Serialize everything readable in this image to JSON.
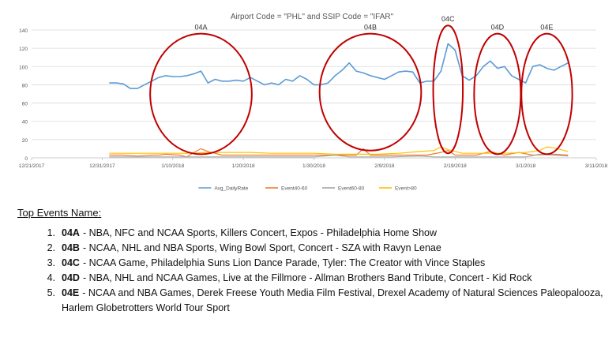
{
  "chart_data": {
    "type": "line",
    "title": "Airport Code = \"PHL\" and SSIP Code = \"IFAR\"",
    "ylim": [
      0,
      140
    ],
    "y_ticks": [
      "0",
      "20",
      "40",
      "60",
      "80",
      "100",
      "120",
      "140"
    ],
    "x_ticks": [
      "12/21/2017",
      "12/31/2017",
      "1/10/2018",
      "1/20/2018",
      "1/30/2018",
      "2/9/2018",
      "2/19/2018",
      "3/1/2018",
      "3/11/2018"
    ],
    "grid": true,
    "legend_position": "bottom",
    "series": [
      {
        "name": "Avg_DailyRate",
        "color": "#5b9bd5",
        "points": [
          [
            "2018-01-01",
            82
          ],
          [
            "2018-01-02",
            82
          ],
          [
            "2018-01-03",
            81
          ],
          [
            "2018-01-04",
            76
          ],
          [
            "2018-01-05",
            76
          ],
          [
            "2018-01-06",
            80
          ],
          [
            "2018-01-07",
            84
          ],
          [
            "2018-01-08",
            88
          ],
          [
            "2018-01-09",
            90
          ],
          [
            "2018-01-10",
            89
          ],
          [
            "2018-01-11",
            89
          ],
          [
            "2018-01-12",
            90
          ],
          [
            "2018-01-13",
            92
          ],
          [
            "2018-01-14",
            95
          ],
          [
            "2018-01-15",
            82
          ],
          [
            "2018-01-16",
            86
          ],
          [
            "2018-01-17",
            84
          ],
          [
            "2018-01-18",
            84
          ],
          [
            "2018-01-19",
            85
          ],
          [
            "2018-01-20",
            84
          ],
          [
            "2018-01-21",
            88
          ],
          [
            "2018-01-22",
            84
          ],
          [
            "2018-01-23",
            80
          ],
          [
            "2018-01-24",
            82
          ],
          [
            "2018-01-25",
            80
          ],
          [
            "2018-01-26",
            86
          ],
          [
            "2018-01-27",
            84
          ],
          [
            "2018-01-28",
            90
          ],
          [
            "2018-01-29",
            86
          ],
          [
            "2018-01-30",
            80
          ],
          [
            "2018-01-31",
            80
          ],
          [
            "2018-02-01",
            82
          ],
          [
            "2018-02-02",
            90
          ],
          [
            "2018-02-03",
            96
          ],
          [
            "2018-02-04",
            104
          ],
          [
            "2018-02-05",
            95
          ],
          [
            "2018-02-06",
            93
          ],
          [
            "2018-02-07",
            90
          ],
          [
            "2018-02-08",
            88
          ],
          [
            "2018-02-09",
            86
          ],
          [
            "2018-02-10",
            90
          ],
          [
            "2018-02-11",
            94
          ],
          [
            "2018-02-12",
            95
          ],
          [
            "2018-02-13",
            94
          ],
          [
            "2018-02-14",
            82
          ],
          [
            "2018-02-15",
            84
          ],
          [
            "2018-02-16",
            84
          ],
          [
            "2018-02-17",
            95
          ],
          [
            "2018-02-18",
            125
          ],
          [
            "2018-02-19",
            118
          ],
          [
            "2018-02-20",
            90
          ],
          [
            "2018-02-21",
            85
          ],
          [
            "2018-02-22",
            90
          ],
          [
            "2018-02-23",
            100
          ],
          [
            "2018-02-24",
            106
          ],
          [
            "2018-02-25",
            98
          ],
          [
            "2018-02-26",
            100
          ],
          [
            "2018-02-27",
            90
          ],
          [
            "2018-02-28",
            86
          ],
          [
            "2018-03-01",
            82
          ],
          [
            "2018-03-02",
            100
          ],
          [
            "2018-03-03",
            102
          ],
          [
            "2018-03-04",
            98
          ],
          [
            "2018-03-05",
            96
          ],
          [
            "2018-03-06",
            100
          ],
          [
            "2018-03-07",
            104
          ]
        ]
      },
      {
        "name": "Event40-60",
        "color": "#ed7d31",
        "points": [
          [
            "2018-01-01",
            3
          ],
          [
            "2018-01-03",
            3
          ],
          [
            "2018-01-05",
            2
          ],
          [
            "2018-01-07",
            3
          ],
          [
            "2018-01-08",
            3
          ],
          [
            "2018-01-09",
            4
          ],
          [
            "2018-01-11",
            3
          ],
          [
            "2018-01-12",
            1
          ],
          [
            "2018-01-13",
            6
          ],
          [
            "2018-01-14",
            10
          ],
          [
            "2018-01-15",
            7
          ],
          [
            "2018-01-17",
            3
          ],
          [
            "2018-01-20",
            3
          ],
          [
            "2018-01-23",
            3
          ],
          [
            "2018-01-26",
            3
          ],
          [
            "2018-01-28",
            3
          ],
          [
            "2018-01-31",
            3
          ],
          [
            "2018-02-03",
            3
          ],
          [
            "2018-02-05",
            3
          ],
          [
            "2018-02-06",
            10
          ],
          [
            "2018-02-07",
            3
          ],
          [
            "2018-02-10",
            3
          ],
          [
            "2018-02-13",
            3
          ],
          [
            "2018-02-15",
            3
          ],
          [
            "2018-02-17",
            6
          ],
          [
            "2018-02-18",
            8
          ],
          [
            "2018-02-19",
            3
          ],
          [
            "2018-02-22",
            3
          ],
          [
            "2018-02-24",
            7
          ],
          [
            "2018-02-26",
            3
          ],
          [
            "2018-02-28",
            6
          ],
          [
            "2018-03-02",
            3
          ],
          [
            "2018-03-05",
            4
          ],
          [
            "2018-03-07",
            3
          ]
        ]
      },
      {
        "name": "Event60-80",
        "color": "#a5a5a5",
        "points": [
          [
            "2018-01-01",
            1
          ],
          [
            "2018-01-05",
            1
          ],
          [
            "2018-01-10",
            1
          ],
          [
            "2018-01-15",
            1
          ],
          [
            "2018-01-20",
            1
          ],
          [
            "2018-01-25",
            1
          ],
          [
            "2018-01-30",
            1
          ],
          [
            "2018-02-02",
            3
          ],
          [
            "2018-02-04",
            1
          ],
          [
            "2018-02-10",
            1
          ],
          [
            "2018-02-14",
            2
          ],
          [
            "2018-02-16",
            1
          ],
          [
            "2018-02-19",
            1
          ],
          [
            "2018-02-25",
            1
          ],
          [
            "2018-03-01",
            1
          ],
          [
            "2018-03-03",
            4
          ],
          [
            "2018-03-05",
            3
          ],
          [
            "2018-03-07",
            2
          ]
        ]
      },
      {
        "name": "Event>80",
        "color": "#ffc000",
        "points": [
          [
            "2018-01-01",
            5
          ],
          [
            "2018-01-03",
            5
          ],
          [
            "2018-01-06",
            5
          ],
          [
            "2018-01-09",
            5
          ],
          [
            "2018-01-12",
            5
          ],
          [
            "2018-01-15",
            6
          ],
          [
            "2018-01-18",
            6
          ],
          [
            "2018-01-21",
            6
          ],
          [
            "2018-01-24",
            5
          ],
          [
            "2018-01-27",
            5
          ],
          [
            "2018-01-30",
            5
          ],
          [
            "2018-02-02",
            4
          ],
          [
            "2018-02-05",
            4
          ],
          [
            "2018-02-08",
            4
          ],
          [
            "2018-02-11",
            5
          ],
          [
            "2018-02-14",
            7
          ],
          [
            "2018-02-16",
            8
          ],
          [
            "2018-02-17",
            12
          ],
          [
            "2018-02-18",
            9
          ],
          [
            "2018-02-20",
            5
          ],
          [
            "2018-02-23",
            5
          ],
          [
            "2018-02-26",
            5
          ],
          [
            "2018-03-01",
            6
          ],
          [
            "2018-03-03",
            8
          ],
          [
            "2018-03-04",
            12
          ],
          [
            "2018-03-05",
            11
          ],
          [
            "2018-03-06",
            9
          ],
          [
            "2018-03-07",
            7
          ]
        ]
      }
    ],
    "annotations": [
      {
        "label": "04A",
        "center": [
          "2018-01-14",
          70
        ],
        "rx_days": 7.2,
        "ry_value": 66
      },
      {
        "label": "04B",
        "center": [
          "2018-02-07",
          72
        ],
        "rx_days": 7.2,
        "ry_value": 64
      },
      {
        "label": "04C",
        "center": [
          "2018-02-18",
          75
        ],
        "rx_days": 2.1,
        "ry_value": 70
      },
      {
        "label": "04D",
        "center": [
          "2018-02-25",
          70
        ],
        "rx_days": 3.3,
        "ry_value": 66
      },
      {
        "label": "04E",
        "center": [
          "2018-03-04",
          70
        ],
        "rx_days": 3.6,
        "ry_value": 66
      }
    ]
  },
  "events_title": "Top Events Name:",
  "events": [
    {
      "num": "1.",
      "code": "04A",
      "text": "- NBA, NFC and NCAA Sports, Killers Concert, Expos - Philadelphia Home Show"
    },
    {
      "num": "2.",
      "code": "04B",
      "text": "- NCAA, NHL and NBA Sports, Wing Bowl Sport, Concert - SZA with Ravyn Lenae"
    },
    {
      "num": "3.",
      "code": "04C",
      "text": "- NCAA Game, Philadelphia Suns Lion Dance Parade, Tyler: The Creator with Vince Staples"
    },
    {
      "num": "4.",
      "code": "04D",
      "text": "- NBA, NHL and NCAA Games, Live at the Fillmore - Allman Brothers Band Tribute, Concert - Kid Rock"
    },
    {
      "num": "5.",
      "code": "04E",
      "text": "- NCAA and NBA Games, Derek Freese Youth Media Film Festival, Drexel Academy of Natural Sciences Paleopalooza, Harlem Globetrotters World Tour Sport"
    }
  ]
}
